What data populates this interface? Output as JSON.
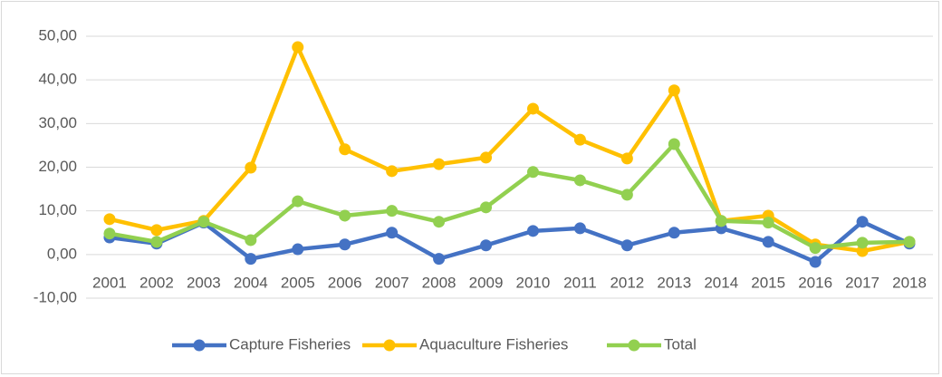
{
  "chart_data": {
    "type": "line",
    "categories": [
      "2001",
      "2002",
      "2003",
      "2004",
      "2005",
      "2006",
      "2007",
      "2008",
      "2009",
      "2010",
      "2011",
      "2012",
      "2013",
      "2014",
      "2015",
      "2016",
      "2017",
      "2018"
    ],
    "series": [
      {
        "name": "Capture Fisheries",
        "color": "#4472c4",
        "values": [
          3.9,
          2.5,
          7.3,
          -1,
          1.2,
          2.3,
          5,
          -1,
          2.1,
          5.4,
          6,
          2.1,
          5,
          6,
          2.9,
          -1.7,
          7.5,
          2.5
        ]
      },
      {
        "name": "Aquaculture Fisheries",
        "color": "#ffc000",
        "values": [
          8.1,
          5.6,
          7.7,
          19.9,
          47.5,
          24.1,
          19.1,
          20.7,
          22.2,
          33.4,
          26.3,
          22,
          37.6,
          7.7,
          8.9,
          2.3,
          0.8,
          2.9
        ]
      },
      {
        "name": "Total",
        "color": "#92d050",
        "values": [
          4.8,
          2.9,
          7.5,
          3.3,
          12.2,
          8.9,
          10,
          7.5,
          10.8,
          18.9,
          17,
          13.7,
          25.3,
          7.7,
          7.3,
          1.5,
          2.7,
          2.9
        ]
      }
    ],
    "ylim": [
      -10,
      50
    ],
    "yticks": [
      {
        "value": -10,
        "label": "-10,00"
      },
      {
        "value": 0,
        "label": "0,00"
      },
      {
        "value": 10,
        "label": "10,00"
      },
      {
        "value": 20,
        "label": "20,00"
      },
      {
        "value": 30,
        "label": "30,00"
      },
      {
        "value": 40,
        "label": "40,00"
      },
      {
        "value": 50,
        "label": "50,00"
      }
    ],
    "grid": true,
    "legend": "bottom"
  }
}
